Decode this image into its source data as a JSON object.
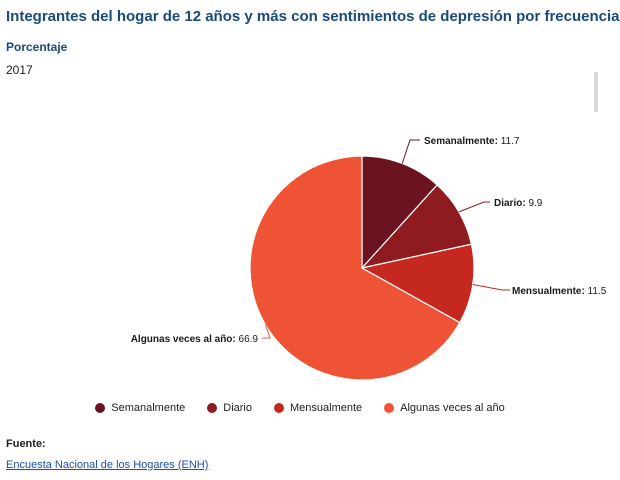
{
  "header": {
    "title": "Integrantes del hogar de 12 años y más con sentimientos de depresión por frecuencia",
    "subtitle": "Porcentaje",
    "year": "2017"
  },
  "chart_data": {
    "type": "pie",
    "title": "Integrantes del hogar de 12 años y más con sentimientos de depresión por frecuencia",
    "subtitle": "Porcentaje",
    "slices": [
      {
        "label": "Semanalmente",
        "value": 11.7,
        "color": "#6b1420"
      },
      {
        "label": "Diario",
        "value": 9.9,
        "color": "#8e1b1f"
      },
      {
        "label": "Mensualmente",
        "value": 11.5,
        "color": "#c4281f"
      },
      {
        "label": "Algunas veces al año",
        "value": 66.9,
        "color": "#ef5336"
      }
    ],
    "legend_position": "bottom"
  },
  "legend": {
    "items": [
      {
        "label": "Semanalmente",
        "color": "#6b1420"
      },
      {
        "label": "Diario",
        "color": "#8e1b1f"
      },
      {
        "label": "Mensualmente",
        "color": "#c4281f"
      },
      {
        "label": "Algunas veces al año",
        "color": "#ef5336"
      }
    ]
  },
  "source": {
    "label": "Fuente:",
    "link_text": "Encuesta Nacional de los Hogares (ENH)"
  }
}
